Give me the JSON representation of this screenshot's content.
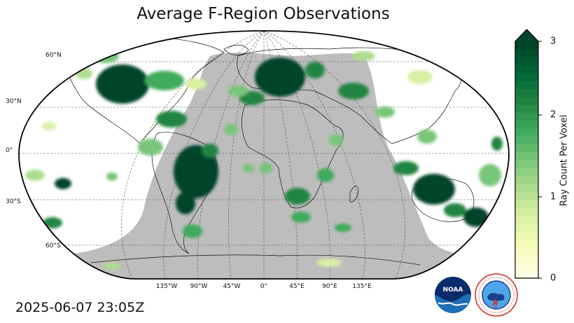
{
  "title": "Average F-Region Observations",
  "timestamp": "2025-06-07 23:05Z",
  "latitude_labels": [
    "60°N",
    "30°N",
    "0°",
    "30°S",
    "60°S"
  ],
  "longitude_labels": [
    "135°W",
    "90°W",
    "45°W",
    "0°",
    "45°E",
    "90°E",
    "135°E"
  ],
  "colorbar": {
    "label": "Ray Count Per Voxel",
    "ticks": [
      "0",
      "1",
      "2",
      "3"
    ],
    "min": 0,
    "max": 3,
    "extend": "max",
    "colors": [
      "#ffffe5",
      "#f7fcb9",
      "#d9f0a3",
      "#addd8e",
      "#78c679",
      "#41ab5d",
      "#238443",
      "#006837",
      "#004529"
    ]
  },
  "map": {
    "projection": "Robinson",
    "night_shading_color": "#bdbdbd",
    "graticule": "dashed",
    "logos": [
      "NOAA",
      "NATIONAL WEATHER SERVICE"
    ]
  }
}
